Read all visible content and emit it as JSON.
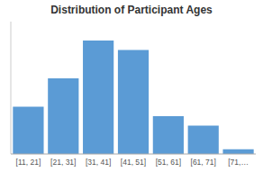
{
  "chart_data": {
    "type": "bar",
    "title": "Distribution of Participant Ages",
    "categories": [
      "[11, 21]",
      "[21, 31]",
      "[31, 41]",
      "[41, 51]",
      "[51, 61]",
      "[61, 71]",
      "[71,…"
    ],
    "values": [
      5,
      8,
      12,
      11,
      4,
      3,
      0.5
    ],
    "color": "#5b9bd5",
    "ylim": [
      0,
      14
    ],
    "grid": false,
    "tick_labels": "x"
  }
}
